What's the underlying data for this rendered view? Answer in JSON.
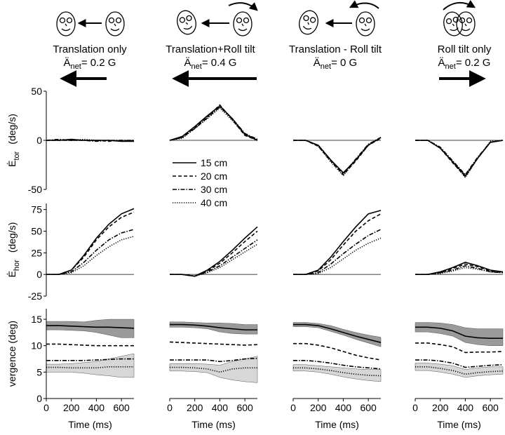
{
  "columns": [
    {
      "title": "Translation only",
      "accel_symbol": "Ä",
      "accel_sub": "net",
      "accel_value": "=  0.2 G"
    },
    {
      "title": "Translation+Roll tilt",
      "accel_symbol": "Ä",
      "accel_sub": "net",
      "accel_value": "= 0.4 G"
    },
    {
      "title": "Translation - Roll tilt",
      "accel_symbol": "Ä",
      "accel_sub": "net",
      "accel_value": "= 0 G"
    },
    {
      "title": "Roll tilt only",
      "accel_symbol": "Ä",
      "accel_sub": "net",
      "accel_value": "=  0.2 G"
    }
  ],
  "chart_data": [
    {
      "type": "line",
      "ylabel_symbol": "Ė",
      "ylabel_sub": "tor",
      "ylabel_unit": "(deg/s)",
      "x": [
        0,
        100,
        200,
        300,
        400,
        500,
        600,
        700
      ],
      "xlim": [
        0,
        700
      ],
      "ylim": [
        -50,
        50
      ],
      "yticks": [
        50,
        0,
        -50
      ],
      "zero_line": true,
      "series": [
        {
          "dash": "solid",
          "values": [
            0,
            0,
            1,
            0,
            0,
            0,
            -1,
            -1
          ]
        },
        {
          "dash": "dashed",
          "values": [
            0,
            0,
            0,
            0,
            0,
            -1,
            0,
            -1
          ]
        },
        {
          "dash": "dashdot",
          "values": [
            0,
            1,
            0,
            0,
            -1,
            0,
            0,
            0
          ]
        },
        {
          "dash": "dotted",
          "values": [
            0,
            0,
            0,
            1,
            0,
            0,
            -1,
            0
          ]
        }
      ]
    },
    {
      "type": "line",
      "x": [
        0,
        100,
        200,
        300,
        400,
        500,
        600,
        700
      ],
      "xlim": [
        0,
        700
      ],
      "ylim": [
        -50,
        50
      ],
      "zero_line": true,
      "legend": true,
      "series": [
        {
          "name": "15 cm",
          "dash": "solid",
          "values": [
            0,
            4,
            14,
            25,
            35,
            22,
            6,
            0
          ]
        },
        {
          "name": "20 cm",
          "dash": "dashed",
          "values": [
            0,
            3,
            13,
            24,
            36,
            21,
            5,
            0
          ]
        },
        {
          "name": "30 cm",
          "dash": "dashdot",
          "values": [
            0,
            3,
            12,
            23,
            34,
            22,
            7,
            1
          ]
        },
        {
          "name": "40 cm",
          "dash": "dotted",
          "values": [
            0,
            2,
            12,
            22,
            33,
            20,
            6,
            1
          ]
        }
      ]
    },
    {
      "type": "line",
      "x": [
        0,
        100,
        200,
        300,
        400,
        500,
        600,
        700
      ],
      "xlim": [
        0,
        700
      ],
      "ylim": [
        -50,
        50
      ],
      "zero_line": true,
      "series": [
        {
          "dash": "solid",
          "values": [
            0,
            0,
            -5,
            -20,
            -33,
            -20,
            -5,
            3
          ]
        },
        {
          "dash": "dashed",
          "values": [
            0,
            0,
            -6,
            -21,
            -35,
            -21,
            -5,
            2
          ]
        },
        {
          "dash": "dashdot",
          "values": [
            0,
            0,
            -5,
            -20,
            -34,
            -19,
            -4,
            3
          ]
        },
        {
          "dash": "dotted",
          "values": [
            0,
            0,
            -6,
            -22,
            -36,
            -20,
            -4,
            2
          ]
        }
      ]
    },
    {
      "type": "line",
      "x": [
        0,
        100,
        200,
        300,
        400,
        500,
        600,
        700
      ],
      "xlim": [
        0,
        700
      ],
      "ylim": [
        -50,
        50
      ],
      "zero_line": true,
      "series": [
        {
          "dash": "solid",
          "values": [
            0,
            0,
            -8,
            -22,
            -36,
            -18,
            -2,
            0
          ]
        },
        {
          "dash": "dashed",
          "values": [
            0,
            0,
            -8,
            -23,
            -37,
            -18,
            -2,
            0
          ]
        },
        {
          "dash": "dashdot",
          "values": [
            0,
            0,
            -7,
            -21,
            -35,
            -17,
            -2,
            0
          ]
        },
        {
          "dash": "dotted",
          "values": [
            0,
            0,
            -8,
            -22,
            -38,
            -18,
            -1,
            0
          ]
        }
      ]
    },
    {
      "type": "line",
      "ylabel_symbol": "Ė",
      "ylabel_sub": "hor",
      "ylabel_unit": "(deg/s)",
      "x": [
        0,
        100,
        200,
        300,
        400,
        500,
        600,
        700
      ],
      "xlim": [
        0,
        700
      ],
      "ylim": [
        -25,
        82
      ],
      "yticks": [
        75,
        50,
        25,
        0,
        -25
      ],
      "zero_line": true,
      "series": [
        {
          "dash": "solid",
          "values": [
            0,
            0,
            5,
            22,
            42,
            58,
            70,
            76
          ]
        },
        {
          "dash": "dashed",
          "values": [
            0,
            0,
            5,
            20,
            40,
            55,
            66,
            72
          ]
        },
        {
          "dash": "dashdot",
          "values": [
            0,
            0,
            3,
            14,
            28,
            40,
            48,
            52
          ]
        },
        {
          "dash": "dotted",
          "values": [
            0,
            0,
            2,
            10,
            22,
            32,
            40,
            44
          ]
        }
      ]
    },
    {
      "type": "line",
      "x": [
        0,
        100,
        200,
        300,
        400,
        500,
        600,
        700
      ],
      "xlim": [
        0,
        700
      ],
      "ylim": [
        -25,
        82
      ],
      "zero_line": true,
      "series": [
        {
          "dash": "solid",
          "values": [
            0,
            0,
            -2,
            5,
            15,
            28,
            42,
            55
          ]
        },
        {
          "dash": "dashed",
          "values": [
            0,
            0,
            -2,
            4,
            13,
            25,
            38,
            50
          ]
        },
        {
          "dash": "dashdot",
          "values": [
            0,
            0,
            -2,
            3,
            10,
            20,
            30,
            40
          ]
        },
        {
          "dash": "dotted",
          "values": [
            0,
            0,
            -2,
            2,
            8,
            17,
            26,
            35
          ]
        }
      ]
    },
    {
      "type": "line",
      "x": [
        0,
        100,
        200,
        300,
        400,
        500,
        600,
        700
      ],
      "xlim": [
        0,
        700
      ],
      "ylim": [
        -25,
        82
      ],
      "zero_line": true,
      "series": [
        {
          "dash": "solid",
          "values": [
            0,
            0,
            5,
            20,
            38,
            55,
            70,
            74
          ]
        },
        {
          "dash": "dashed",
          "values": [
            0,
            0,
            4,
            17,
            34,
            50,
            62,
            70
          ]
        },
        {
          "dash": "dashdot",
          "values": [
            0,
            0,
            2,
            12,
            24,
            35,
            45,
            52
          ]
        },
        {
          "dash": "dotted",
          "values": [
            0,
            0,
            1,
            8,
            18,
            28,
            36,
            42
          ]
        }
      ]
    },
    {
      "type": "line",
      "x": [
        0,
        100,
        200,
        300,
        400,
        500,
        600,
        700
      ],
      "xlim": [
        0,
        700
      ],
      "ylim": [
        -25,
        82
      ],
      "zero_line": true,
      "series": [
        {
          "dash": "solid",
          "values": [
            0,
            0,
            3,
            8,
            14,
            10,
            5,
            3
          ]
        },
        {
          "dash": "dashed",
          "values": [
            0,
            0,
            2,
            7,
            12,
            9,
            4,
            2
          ]
        },
        {
          "dash": "dashdot",
          "values": [
            0,
            0,
            2,
            5,
            10,
            7,
            3,
            2
          ]
        },
        {
          "dash": "dotted",
          "values": [
            0,
            0,
            1,
            4,
            8,
            6,
            3,
            2
          ]
        }
      ]
    },
    {
      "type": "line",
      "ylabel": "vergence (deg)",
      "xlabel": "Time (ms)",
      "x": [
        0,
        100,
        200,
        300,
        400,
        500,
        600,
        700
      ],
      "xlim": [
        0,
        700
      ],
      "xticks": [
        0,
        200,
        400,
        600
      ],
      "ylim": [
        0,
        17
      ],
      "yticks": [
        15,
        10,
        5,
        0
      ],
      "series": [
        {
          "dash": "solid",
          "values": [
            13.8,
            13.8,
            13.7,
            13.6,
            13.5,
            13.5,
            13.4,
            13.3
          ],
          "band_color": "#888888",
          "lower": [
            13.0,
            13.0,
            12.9,
            12.8,
            12.5,
            12.0,
            11.5,
            11.5
          ],
          "upper": [
            14.6,
            14.6,
            14.6,
            14.5,
            14.8,
            15.0,
            15.0,
            15.0
          ]
        },
        {
          "dash": "dashed",
          "values": [
            10.3,
            10.3,
            10.2,
            10.1,
            10.0,
            10.0,
            10.0,
            10.0
          ]
        },
        {
          "dash": "dashdot",
          "values": [
            7.2,
            7.2,
            7.2,
            7.2,
            7.3,
            7.4,
            7.5,
            7.5
          ]
        },
        {
          "dash": "dotted",
          "values": [
            5.9,
            5.9,
            5.8,
            5.8,
            5.8,
            6.0,
            6.0,
            6.0
          ],
          "band_color": "#d0d0d0",
          "lower": [
            5.0,
            5.0,
            5.0,
            4.8,
            4.5,
            4.3,
            4.0,
            4.0
          ],
          "upper": [
            6.5,
            6.5,
            6.6,
            6.8,
            7.0,
            7.5,
            8.0,
            8.5
          ]
        }
      ]
    },
    {
      "type": "line",
      "xlabel": "Time (ms)",
      "x": [
        0,
        100,
        200,
        300,
        400,
        500,
        600,
        700
      ],
      "xlim": [
        0,
        700
      ],
      "xticks": [
        0,
        200,
        400,
        600
      ],
      "ylim": [
        0,
        17
      ],
      "series": [
        {
          "dash": "solid",
          "values": [
            14.0,
            14.0,
            13.9,
            13.7,
            13.4,
            13.2,
            13.0,
            13.0
          ],
          "band_color": "#888888",
          "lower": [
            13.5,
            13.5,
            13.4,
            13.2,
            12.6,
            12.3,
            12.2,
            12.2
          ],
          "upper": [
            14.5,
            14.5,
            14.4,
            14.3,
            14.3,
            14.2,
            14.0,
            14.0
          ]
        },
        {
          "dash": "dashed",
          "values": [
            10.7,
            10.6,
            10.5,
            10.4,
            10.3,
            10.2,
            10.1,
            10.2
          ]
        },
        {
          "dash": "dashdot",
          "values": [
            7.3,
            7.3,
            7.3,
            7.3,
            7.0,
            7.2,
            7.5,
            7.6
          ]
        },
        {
          "dash": "dotted",
          "values": [
            5.9,
            5.9,
            5.8,
            5.6,
            5.0,
            5.6,
            5.8,
            5.8
          ],
          "band_color": "#d0d0d0",
          "lower": [
            5.2,
            5.2,
            5.1,
            4.9,
            4.0,
            3.5,
            3.2,
            3.0
          ],
          "upper": [
            6.6,
            6.6,
            6.6,
            6.5,
            6.3,
            7.0,
            7.5,
            8.0
          ]
        }
      ]
    },
    {
      "type": "line",
      "xlabel": "Time (ms)",
      "x": [
        0,
        100,
        200,
        300,
        400,
        500,
        600,
        700
      ],
      "xlim": [
        0,
        700
      ],
      "xticks": [
        0,
        200,
        400,
        600
      ],
      "ylim": [
        0,
        17
      ],
      "series": [
        {
          "dash": "solid",
          "values": [
            14.0,
            14.0,
            13.8,
            13.2,
            12.5,
            11.8,
            11.2,
            10.6
          ],
          "band_color": "#888888",
          "lower": [
            13.6,
            13.6,
            13.4,
            12.7,
            12.0,
            11.2,
            10.5,
            9.8
          ],
          "upper": [
            14.4,
            14.4,
            14.2,
            13.8,
            13.1,
            12.5,
            12.0,
            11.6
          ]
        },
        {
          "dash": "dashed",
          "values": [
            10.4,
            10.4,
            10.1,
            9.6,
            8.9,
            8.2,
            7.7,
            7.3
          ]
        },
        {
          "dash": "dashdot",
          "values": [
            7.2,
            7.2,
            7.0,
            6.7,
            6.3,
            6.0,
            5.8,
            5.6
          ]
        },
        {
          "dash": "dotted",
          "values": [
            5.8,
            5.8,
            5.6,
            5.3,
            4.9,
            4.6,
            4.4,
            4.3
          ],
          "band_color": "#d0d0d0",
          "lower": [
            5.2,
            5.2,
            5.0,
            4.6,
            4.1,
            3.7,
            3.4,
            3.2
          ],
          "upper": [
            6.4,
            6.4,
            6.2,
            6.0,
            5.8,
            5.6,
            5.5,
            5.5
          ]
        }
      ]
    },
    {
      "type": "line",
      "xlabel": "Time (ms)",
      "x": [
        0,
        100,
        200,
        300,
        400,
        500,
        600,
        700
      ],
      "xlim": [
        0,
        700
      ],
      "xticks": [
        0,
        200,
        400,
        600
      ],
      "ylim": [
        0,
        17
      ],
      "series": [
        {
          "dash": "solid",
          "values": [
            13.5,
            13.5,
            13.3,
            12.8,
            11.8,
            11.5,
            11.4,
            11.4
          ],
          "band_color": "#888888",
          "lower": [
            12.6,
            12.6,
            12.3,
            11.8,
            10.6,
            10.2,
            10.0,
            10.0
          ],
          "upper": [
            14.4,
            14.4,
            14.3,
            14.0,
            13.4,
            13.2,
            13.2,
            13.2
          ]
        },
        {
          "dash": "dashed",
          "values": [
            10.5,
            10.5,
            10.2,
            9.8,
            8.7,
            8.8,
            8.8,
            8.9
          ]
        },
        {
          "dash": "dashdot",
          "values": [
            7.3,
            7.3,
            7.1,
            6.7,
            5.9,
            6.1,
            6.3,
            6.4
          ]
        },
        {
          "dash": "dotted",
          "values": [
            6.0,
            6.0,
            5.7,
            5.3,
            4.6,
            4.9,
            5.1,
            5.2
          ],
          "band_color": "#d0d0d0",
          "lower": [
            5.3,
            5.3,
            5.0,
            4.6,
            4.0,
            4.3,
            4.5,
            4.6
          ],
          "upper": [
            6.7,
            6.7,
            6.5,
            6.2,
            5.5,
            5.8,
            6.0,
            6.0
          ]
        }
      ]
    }
  ]
}
